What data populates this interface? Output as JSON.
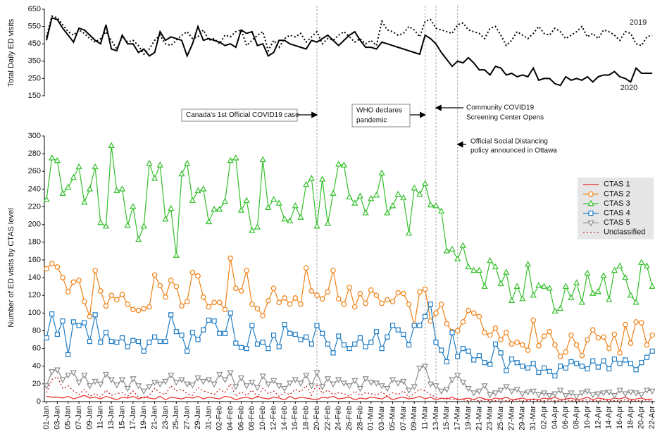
{
  "chart_data": [
    {
      "type": "line",
      "ylabel": "Total Daily ED visits",
      "ylim": [
        150,
        650
      ],
      "yticks": [
        150,
        250,
        350,
        450,
        550,
        650
      ],
      "series": [
        {
          "name": "2019",
          "color": "#000000",
          "dash": "dotted",
          "values": [
            490,
            610,
            600,
            560,
            520,
            500,
            530,
            510,
            480,
            460,
            480,
            520,
            470,
            420,
            490,
            460,
            470,
            440,
            390,
            420,
            470,
            500,
            450,
            440,
            470,
            500,
            520,
            480,
            490,
            530,
            470,
            480,
            450,
            500,
            490,
            520,
            530,
            440,
            470,
            500,
            520,
            410,
            470,
            430,
            480,
            500,
            490,
            510,
            460,
            490,
            520,
            450,
            480,
            470,
            500,
            520,
            490,
            460,
            480,
            450,
            470,
            440,
            580,
            530,
            520,
            500,
            510,
            550,
            530,
            490,
            580,
            590,
            540,
            530,
            520,
            510,
            560,
            570,
            530,
            520,
            510,
            480,
            540,
            550,
            500,
            440,
            470,
            520,
            500,
            480,
            510,
            550,
            510,
            500,
            540,
            520,
            480,
            500,
            520,
            550,
            490,
            510,
            480,
            530,
            520,
            500,
            470,
            520,
            510,
            450,
            440,
            490,
            500
          ]
        },
        {
          "name": "2020",
          "color": "#000000",
          "dash": "solid",
          "values": [
            470,
            600,
            590,
            540,
            500,
            460,
            540,
            530,
            500,
            470,
            450,
            560,
            420,
            410,
            500,
            450,
            450,
            400,
            420,
            380,
            400,
            520,
            470,
            490,
            480,
            470,
            380,
            450,
            550,
            470,
            480,
            470,
            460,
            440,
            450,
            430,
            530,
            510,
            520,
            440,
            450,
            380,
            400,
            470,
            470,
            450,
            440,
            430,
            420,
            470,
            460,
            480,
            500,
            470,
            440,
            470,
            500,
            520,
            470,
            430,
            430,
            420,
            460,
            450,
            440,
            430,
            420,
            410,
            400,
            390,
            500,
            480,
            450,
            400,
            360,
            320,
            350,
            340,
            370,
            340,
            300,
            300,
            270,
            320,
            310,
            270,
            280,
            260,
            270,
            260,
            310,
            240,
            250,
            250,
            220,
            210,
            260,
            240,
            250,
            240,
            260,
            230,
            260,
            270,
            270,
            290,
            260,
            250,
            230,
            310,
            280,
            280,
            280
          ]
        }
      ],
      "annotations": [
        {
          "text": [
            "Canada's 1st Official COVID19 case"
          ],
          "x": "20-Feb"
        },
        {
          "text": [
            "WHO declares",
            "pandemic"
          ],
          "x": "11-Mar"
        },
        {
          "text": [
            "Community COVID19",
            "Screening Center Opens"
          ],
          "x": "13-Mar"
        },
        {
          "text": [
            "Official Social Distancing",
            "policy announced in Ottawa"
          ],
          "x": "17-Mar"
        }
      ]
    },
    {
      "type": "line",
      "ylabel": "Number of ED visits by CTAS level",
      "ylim": [
        0,
        300
      ],
      "yticks": [
        0,
        20,
        40,
        60,
        80,
        100,
        120,
        140,
        160,
        180,
        200,
        220,
        240,
        260,
        280,
        300
      ],
      "legend": "upper right",
      "categories": [
        "01-Jan",
        null,
        "03-Jan",
        null,
        "05-Jan",
        null,
        "07-Jan",
        null,
        "09-Jan",
        null,
        "11-Jan",
        null,
        "13-Jan",
        null,
        "15-Jan",
        null,
        "17-Jan",
        null,
        "19-Jan",
        null,
        "21-Jan",
        null,
        "23-Jan",
        null,
        "25-Jan",
        null,
        "27-Jan",
        null,
        "29-Jan",
        null,
        "31-Jan",
        null,
        "02-Feb",
        null,
        "04-Feb",
        null,
        "06-Feb",
        null,
        "08-Feb",
        null,
        "10-Feb",
        null,
        "12-Feb",
        null,
        "14-Feb",
        null,
        "16-Feb",
        null,
        "18-Feb",
        null,
        "20-Feb",
        null,
        "22-Feb",
        null,
        "24-Feb",
        null,
        "26-Feb",
        null,
        "28-Feb",
        null,
        "01-Mar",
        null,
        "03-Mar",
        null,
        "05-Mar",
        null,
        "07-Mar",
        null,
        "09-Mar",
        null,
        "11-Mar",
        null,
        "13-Mar",
        null,
        "15-Mar",
        null,
        "17-Mar",
        null,
        "19-Mar",
        null,
        "21-Mar",
        null,
        "23-Mar",
        null,
        "25-Mar",
        null,
        "27-Mar",
        null,
        "29-Mar",
        null,
        "31-Mar",
        null,
        "02-Apr",
        null,
        "04-Apr",
        null,
        "06-Apr",
        null,
        "08-Apr",
        null,
        "10-Apr",
        null,
        "12-Apr",
        null,
        "14-Apr",
        null,
        "16-Apr",
        null,
        "18-Apr",
        null,
        "20-Apr",
        null,
        "22-Apr"
      ],
      "series": [
        {
          "name": "CTAS 1",
          "color": "#e8251f",
          "dash": "solid",
          "marker": "none",
          "values": [
            6,
            5,
            5,
            4,
            6,
            3,
            5,
            7,
            4,
            5,
            3,
            6,
            4,
            2,
            5,
            4,
            6,
            3,
            5,
            4,
            3,
            6,
            2,
            5,
            4,
            3,
            5,
            4,
            6,
            3,
            5,
            4,
            3,
            6,
            5,
            2,
            4,
            5,
            3,
            6,
            4,
            3,
            5,
            4,
            2,
            6,
            3,
            5,
            4,
            3,
            2,
            5,
            4,
            6,
            3,
            4,
            5,
            2,
            4,
            3,
            5,
            4,
            3,
            6,
            2,
            4,
            5,
            3,
            4,
            6,
            3,
            5,
            2,
            4,
            3,
            5,
            2,
            3,
            4,
            2,
            5,
            3,
            2,
            4,
            3,
            5,
            2,
            3,
            4,
            2,
            3,
            2,
            4,
            3,
            5,
            2,
            3,
            4,
            2,
            3,
            5,
            2,
            4,
            3,
            2,
            4,
            3,
            5,
            2,
            3,
            4,
            2,
            3
          ]
        },
        {
          "name": "CTAS 2",
          "color": "#f07f12",
          "dash": "solid",
          "marker": "circle",
          "values": [
            150,
            156,
            152,
            140,
            124,
            135,
            137,
            113,
            96,
            148,
            125,
            108,
            120,
            115,
            121,
            110,
            104,
            103,
            105,
            107,
            143,
            131,
            118,
            137,
            130,
            108,
            113,
            146,
            142,
            118,
            107,
            112,
            112,
            104,
            162,
            128,
            125,
            148,
            110,
            105,
            97,
            114,
            128,
            112,
            117,
            110,
            117,
            110,
            151,
            125,
            120,
            116,
            124,
            148,
            116,
            110,
            129,
            107,
            122,
            111,
            126,
            120,
            111,
            115,
            113,
            123,
            122,
            110,
            86,
            124,
            127,
            91,
            100,
            110,
            88,
            79,
            80,
            90,
            103,
            100,
            96,
            78,
            75,
            83,
            70,
            78,
            65,
            67,
            64,
            58,
            92,
            63,
            74,
            79,
            64,
            51,
            56,
            75,
            64,
            52,
            70,
            81,
            72,
            73,
            60,
            76,
            55,
            87,
            66,
            90,
            89,
            64,
            75
          ]
        },
        {
          "name": "CTAS 3",
          "color": "#33c02a",
          "dash": "solid",
          "marker": "triangle-up",
          "values": [
            228,
            275,
            272,
            235,
            242,
            253,
            265,
            225,
            240,
            265,
            202,
            198,
            289,
            238,
            240,
            199,
            220,
            183,
            198,
            269,
            252,
            267,
            206,
            218,
            165,
            257,
            269,
            227,
            238,
            240,
            203,
            217,
            217,
            226,
            272,
            275,
            216,
            227,
            193,
            197,
            273,
            219,
            228,
            224,
            206,
            204,
            221,
            208,
            245,
            252,
            198,
            251,
            201,
            235,
            268,
            267,
            231,
            224,
            232,
            213,
            229,
            233,
            258,
            213,
            221,
            234,
            230,
            190,
            241,
            234,
            246,
            222,
            221,
            215,
            170,
            172,
            161,
            176,
            152,
            148,
            148,
            130,
            159,
            152,
            133,
            146,
            114,
            130,
            116,
            155,
            120,
            131,
            130,
            128,
            102,
            105,
            130,
            117,
            134,
            112,
            145,
            122,
            124,
            142,
            115,
            148,
            153,
            140,
            120,
            112,
            157,
            153,
            130
          ]
        },
        {
          "name": "CTAS 4",
          "color": "#1f7cc4",
          "dash": "solid",
          "marker": "square",
          "values": [
            72,
            99,
            76,
            91,
            53,
            90,
            86,
            89,
            68,
            98,
            67,
            78,
            68,
            67,
            72,
            62,
            69,
            68,
            57,
            67,
            73,
            68,
            68,
            98,
            79,
            75,
            57,
            78,
            70,
            81,
            92,
            91,
            77,
            77,
            100,
            66,
            61,
            60,
            86,
            65,
            67,
            60,
            75,
            62,
            87,
            77,
            76,
            70,
            73,
            65,
            86,
            77,
            65,
            55,
            74,
            64,
            60,
            65,
            72,
            62,
            67,
            79,
            60,
            73,
            86,
            81,
            76,
            64,
            86,
            86,
            96,
            110,
            67,
            58,
            45,
            78,
            51,
            60,
            57,
            47,
            52,
            44,
            42,
            65,
            55,
            35,
            48,
            44,
            40,
            38,
            43,
            33,
            38,
            34,
            29,
            40,
            38,
            45,
            43,
            40,
            37,
            46,
            39,
            46,
            37,
            48,
            43,
            47,
            43,
            36,
            44,
            50,
            57
          ]
        },
        {
          "name": "CTAS 5",
          "color": "#8c8c8c",
          "dash": "solid",
          "marker": "triangle-down",
          "values": [
            18,
            34,
            36,
            25,
            30,
            33,
            22,
            30,
            18,
            23,
            20,
            31,
            25,
            19,
            25,
            15,
            26,
            18,
            12,
            17,
            22,
            20,
            23,
            30,
            22,
            25,
            20,
            19,
            27,
            23,
            25,
            20,
            31,
            25,
            33,
            17,
            27,
            18,
            22,
            16,
            29,
            20,
            24,
            18,
            15,
            21,
            25,
            21,
            30,
            18,
            33,
            17,
            26,
            20,
            25,
            21,
            18,
            24,
            15,
            26,
            22,
            21,
            18,
            15,
            25,
            21,
            23,
            13,
            17,
            38,
            40,
            20,
            18,
            12,
            14,
            25,
            30,
            22,
            15,
            10,
            12,
            18,
            8,
            10,
            13,
            17,
            12,
            14,
            9,
            11,
            12,
            8,
            10,
            7,
            9,
            13,
            7,
            10,
            6,
            10,
            12,
            8,
            9,
            10,
            11,
            7,
            13,
            9,
            11,
            10,
            8,
            13,
            12
          ]
        },
        {
          "name": "Unclassified",
          "color": "#c0141b",
          "dash": "dotted",
          "marker": "none",
          "values": [
            10,
            25,
            28,
            15,
            18,
            12,
            8,
            14,
            6,
            9,
            5,
            13,
            7,
            9,
            10,
            6,
            12,
            5,
            4,
            7,
            15,
            10,
            8,
            18,
            12,
            14,
            9,
            7,
            16,
            12,
            10,
            8,
            14,
            10,
            20,
            6,
            11,
            7,
            13,
            5,
            15,
            9,
            12,
            6,
            10,
            8,
            14,
            11,
            18,
            7,
            20,
            9,
            13,
            8,
            10,
            9,
            6,
            12,
            7,
            10,
            9,
            7,
            11,
            6,
            10,
            8,
            12,
            5,
            9,
            14,
            12,
            8,
            5,
            3,
            4,
            2,
            3,
            2,
            1,
            2,
            1,
            2,
            1,
            1,
            2,
            1,
            1,
            2,
            1,
            1,
            2,
            1,
            1,
            2,
            1,
            1,
            2,
            1,
            1,
            1,
            2,
            1,
            1,
            2,
            1,
            1,
            1,
            2,
            1,
            1,
            1,
            2,
            1
          ]
        }
      ]
    }
  ]
}
